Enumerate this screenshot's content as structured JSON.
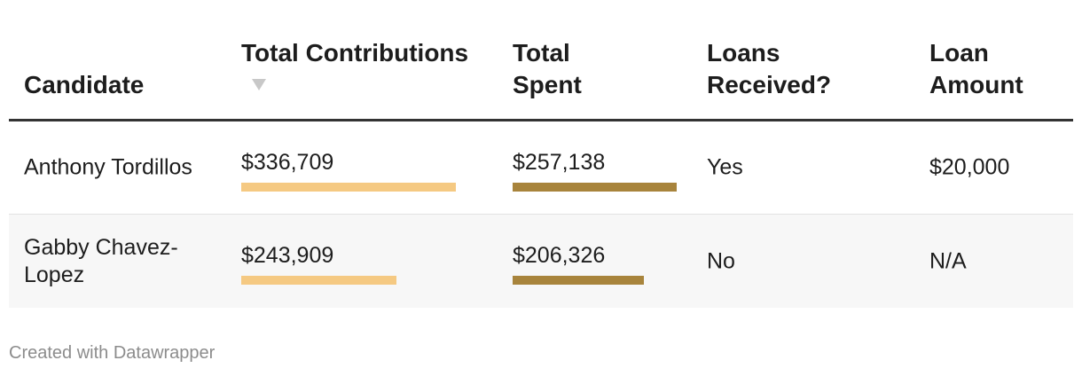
{
  "table": {
    "headers": {
      "candidate": "Candidate",
      "total_contributions": "Total Contributions",
      "total_spent": "Total Spent",
      "loans_received": "Loans Received?",
      "loan_amount": "Loan Amount"
    },
    "sort_indicator": "sort-descending-icon",
    "rows": [
      {
        "candidate": "Anthony Tordillos",
        "total_contributions": "$336,709",
        "total_spent": "$257,138",
        "loans_received": "Yes",
        "loan_amount": "$20,000"
      },
      {
        "candidate": "Gabby Chavez-Lopez",
        "total_contributions": "$243,909",
        "total_spent": "$206,326",
        "loans_received": "No",
        "loan_amount": "N/A"
      }
    ]
  },
  "chart_data": {
    "type": "table",
    "columns": [
      "Candidate",
      "Total Contributions",
      "Total Spent",
      "Loans Received?",
      "Loan Amount"
    ],
    "bar_columns": {
      "Total Contributions": {
        "values": [
          336709,
          243909
        ],
        "color": "#f5c982",
        "max": 336709
      },
      "Total Spent": {
        "values": [
          257138,
          206326
        ],
        "color": "#a8843c",
        "max": 336709
      }
    }
  },
  "footer": {
    "credit": "Created with Datawrapper"
  }
}
